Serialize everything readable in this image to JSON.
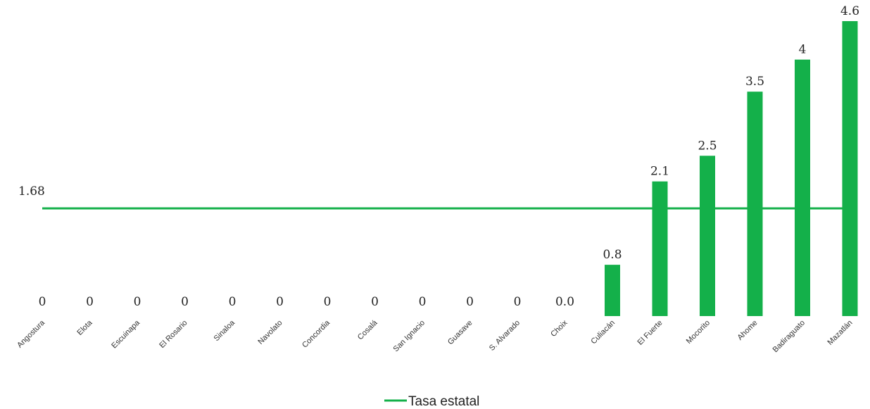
{
  "chart_data": {
    "type": "bar",
    "categories": [
      "Angostura",
      "Elota",
      "Escuinapa",
      "El Rosario",
      "Sinaloa",
      "Navolato",
      "Concordia",
      "Cosalá",
      "San Ignacio",
      "Guasave",
      "S. Alvarado",
      "Choix",
      "Culiacán",
      "El Fuerte",
      "Mocorito",
      "Ahome",
      "Badiraguato",
      "Mazatlán"
    ],
    "values": [
      0,
      0,
      0,
      0,
      0,
      0,
      0,
      0,
      0,
      0,
      0,
      0,
      0.8,
      2.1,
      2.5,
      3.5,
      4,
      4.6
    ],
    "data_labels": [
      "0",
      "0",
      "0",
      "0",
      "0",
      "0",
      "0",
      "0",
      "0",
      "0",
      "0",
      "0.0",
      "0.8",
      "2.1",
      "2.5",
      "3.5",
      "4",
      "4.6"
    ],
    "reference_line": {
      "name": "Tasa estatal",
      "value": 1.68,
      "label": "1.68"
    },
    "ylim": [
      0,
      4.6
    ],
    "grid": false,
    "legend": "bottom-center",
    "colors": {
      "bar": "#14b04a",
      "line": "#14b04a"
    }
  }
}
